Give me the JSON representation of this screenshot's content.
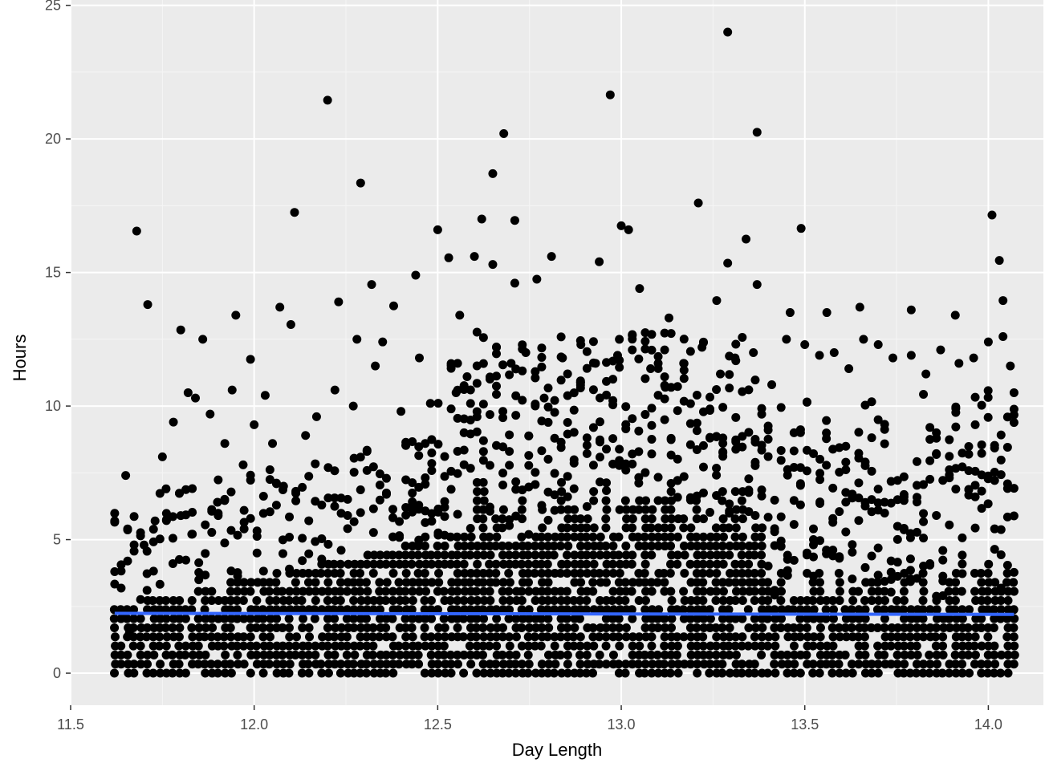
{
  "chart_data": {
    "type": "scatter",
    "title": "",
    "xlabel": "Day Length",
    "ylabel": "Hours",
    "xlim": [
      11.5,
      14.15
    ],
    "ylim": [
      -1.2,
      25.2
    ],
    "x_ticks": [
      11.5,
      12.0,
      12.5,
      13.0,
      13.5,
      14.0
    ],
    "x_tick_labels": [
      "11.5",
      "12.0",
      "12.5",
      "13.0",
      "13.5",
      "14.0"
    ],
    "y_ticks": [
      0,
      5,
      10,
      15,
      20,
      25
    ],
    "y_tick_labels": [
      "0",
      "5",
      "10",
      "15",
      "20",
      "25"
    ],
    "grid": true,
    "panel_background": "#EBEBEB",
    "point_color": "#000000",
    "fit_line_color": "#3366FF",
    "series": [
      {
        "kind": "points",
        "points": [
          [
            11.68,
            16.55
          ],
          [
            11.71,
            13.8
          ],
          [
            11.65,
            7.4
          ],
          [
            11.62,
            5.7
          ],
          [
            11.75,
            8.1
          ],
          [
            11.78,
            9.4
          ],
          [
            11.8,
            12.85
          ],
          [
            11.86,
            12.5
          ],
          [
            11.84,
            10.3
          ],
          [
            11.82,
            10.5
          ],
          [
            11.88,
            9.7
          ],
          [
            11.94,
            10.6
          ],
          [
            11.95,
            13.4
          ],
          [
            11.99,
            11.75
          ],
          [
            12.0,
            9.3
          ],
          [
            12.03,
            10.4
          ],
          [
            12.07,
            13.7
          ],
          [
            12.1,
            13.05
          ],
          [
            12.11,
            17.25
          ],
          [
            12.2,
            21.45
          ],
          [
            12.23,
            13.9
          ],
          [
            12.28,
            12.5
          ],
          [
            12.29,
            18.35
          ],
          [
            12.32,
            14.55
          ],
          [
            12.38,
            13.75
          ],
          [
            12.35,
            12.4
          ],
          [
            12.44,
            14.9
          ],
          [
            12.5,
            16.6
          ],
          [
            12.53,
            15.55
          ],
          [
            12.56,
            13.4
          ],
          [
            12.62,
            17.0
          ],
          [
            12.65,
            18.7
          ],
          [
            12.68,
            20.2
          ],
          [
            12.71,
            16.95
          ],
          [
            12.65,
            15.3
          ],
          [
            12.6,
            15.6
          ],
          [
            12.71,
            14.6
          ],
          [
            12.77,
            14.75
          ],
          [
            12.81,
            15.6
          ],
          [
            12.94,
            15.4
          ],
          [
            12.97,
            21.65
          ],
          [
            13.0,
            16.75
          ],
          [
            13.02,
            16.6
          ],
          [
            13.05,
            14.4
          ],
          [
            13.13,
            13.3
          ],
          [
            13.21,
            17.6
          ],
          [
            13.26,
            13.95
          ],
          [
            13.29,
            24.0
          ],
          [
            13.29,
            15.35
          ],
          [
            13.34,
            16.25
          ],
          [
            13.37,
            20.25
          ],
          [
            13.37,
            14.55
          ],
          [
            13.49,
            16.65
          ],
          [
            13.46,
            13.5
          ],
          [
            13.56,
            13.5
          ],
          [
            13.65,
            13.7
          ],
          [
            13.79,
            13.6
          ],
          [
            13.91,
            13.4
          ],
          [
            14.01,
            17.15
          ],
          [
            14.03,
            15.45
          ],
          [
            14.04,
            13.95
          ],
          [
            11.62,
            3.8
          ],
          [
            11.64,
            2.3
          ],
          [
            11.66,
            1.5
          ],
          [
            11.7,
            4.8
          ],
          [
            11.73,
            5.7
          ],
          [
            11.76,
            6.9
          ],
          [
            11.8,
            5.9
          ],
          [
            11.83,
            5.2
          ],
          [
            11.9,
            6.4
          ],
          [
            11.92,
            8.6
          ],
          [
            11.97,
            7.8
          ],
          [
            12.05,
            8.6
          ],
          [
            12.08,
            7.0
          ],
          [
            12.14,
            8.9
          ],
          [
            12.17,
            9.6
          ],
          [
            12.22,
            10.6
          ],
          [
            12.27,
            10.0
          ],
          [
            12.33,
            11.5
          ],
          [
            12.4,
            9.8
          ],
          [
            12.45,
            11.8
          ],
          [
            12.48,
            10.1
          ],
          [
            12.55,
            10.5
          ],
          [
            12.58,
            11.1
          ],
          [
            12.66,
            12.2
          ],
          [
            12.7,
            11.6
          ],
          [
            12.74,
            12.0
          ],
          [
            12.79,
            10.3
          ],
          [
            12.84,
            11.8
          ],
          [
            12.89,
            12.3
          ],
          [
            12.93,
            11.6
          ],
          [
            12.99,
            11.9
          ],
          [
            13.03,
            12.1
          ],
          [
            13.08,
            11.4
          ],
          [
            13.12,
            10.7
          ],
          [
            13.17,
            11.6
          ],
          [
            13.22,
            12.2
          ],
          [
            13.27,
            11.2
          ],
          [
            13.31,
            11.8
          ],
          [
            13.36,
            12.0
          ],
          [
            13.41,
            10.8
          ],
          [
            13.45,
            12.5
          ],
          [
            13.5,
            12.3
          ],
          [
            13.54,
            11.9
          ],
          [
            13.58,
            12.0
          ],
          [
            13.62,
            11.4
          ],
          [
            13.66,
            12.5
          ],
          [
            13.7,
            12.3
          ],
          [
            13.74,
            11.8
          ],
          [
            13.79,
            11.9
          ],
          [
            13.83,
            11.2
          ],
          [
            13.87,
            12.1
          ],
          [
            13.92,
            11.6
          ],
          [
            13.96,
            11.8
          ],
          [
            14.0,
            12.4
          ],
          [
            14.04,
            12.6
          ],
          [
            14.06,
            11.5
          ],
          [
            14.07,
            10.5
          ]
        ]
      },
      {
        "kind": "fit_line",
        "x": [
          11.62,
          14.07
        ],
        "y": [
          2.24,
          2.2
        ]
      }
    ]
  }
}
